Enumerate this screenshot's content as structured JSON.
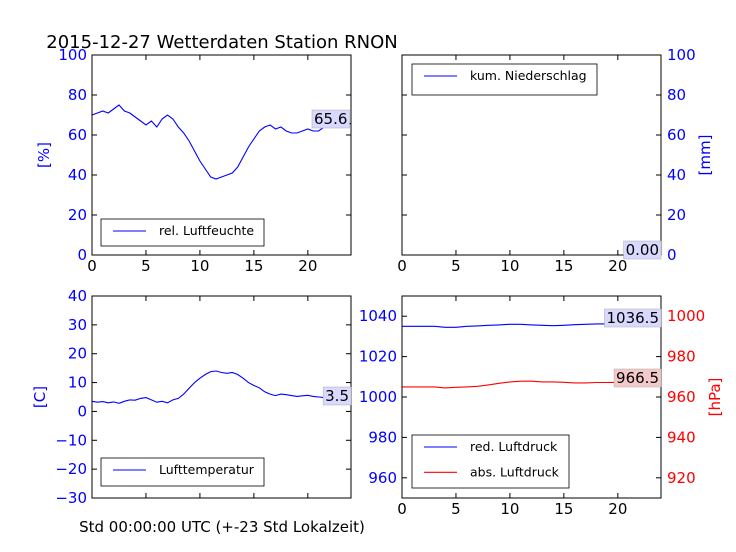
{
  "title": "2015-12-27 Wetterdaten Station RNON",
  "xlabel": "Std 00:00:00 UTC (+-23 Std Lokalzeit)",
  "colors": {
    "blue": "#0000ff",
    "red": "#ff0000",
    "annot_bg": "#d9d9ff",
    "annot_bg_red": "#f4c9c9"
  },
  "chart_data": [
    {
      "id": "humidity",
      "type": "line",
      "xlim": [
        0,
        24
      ],
      "ylim": [
        0,
        100
      ],
      "xticks": [
        "0",
        "5",
        "10",
        "15",
        "20"
      ],
      "yticks": [
        "0",
        "20",
        "40",
        "60",
        "80",
        "100"
      ],
      "ylabel": "[%]",
      "ylabel_color": "#0000ff",
      "ytick_color": "#0000ff",
      "last_value": "65.6",
      "legend": "top-left: bottom-left",
      "series": [
        {
          "name": "rel. Luftfeuchte",
          "color": "#0000ff",
          "x": [
            0,
            0.5,
            1,
            1.5,
            2,
            2.5,
            3,
            3.5,
            4,
            4.5,
            5,
            5.5,
            6,
            6.5,
            7,
            7.5,
            8,
            8.5,
            9,
            9.5,
            10,
            10.5,
            11,
            11.5,
            12,
            12.5,
            13,
            13.5,
            14,
            14.5,
            15,
            15.5,
            16,
            16.5,
            17,
            17.5,
            18,
            18.5,
            19,
            19.5,
            20,
            20.5,
            21,
            21.5,
            22,
            22.5,
            23,
            23.5,
            24
          ],
          "y": [
            70,
            71,
            72,
            71,
            73,
            75,
            72,
            71,
            69,
            67,
            65,
            67,
            64,
            68,
            70,
            68,
            64,
            61,
            57,
            52,
            47,
            43,
            39,
            38,
            39,
            40,
            41,
            44,
            49,
            54,
            58,
            62,
            64,
            65,
            63,
            64,
            62,
            61,
            61,
            62,
            63,
            62,
            62,
            64,
            66,
            65,
            65,
            66,
            65.6
          ]
        }
      ]
    },
    {
      "id": "precip",
      "type": "line",
      "xlim": [
        0,
        24
      ],
      "ylim": [
        0,
        100
      ],
      "xticks": [
        "0",
        "5",
        "10",
        "15",
        "20"
      ],
      "yticks": [
        "0",
        "20",
        "40",
        "60",
        "80",
        "100"
      ],
      "ylabel": "[mm]",
      "ylabel_color": "#0000ff",
      "ytick_color": "#0000ff",
      "last_value": "0.00",
      "series": [
        {
          "name": "kum. Niederschlag",
          "color": "#0000ff",
          "x": [
            0,
            24
          ],
          "y": [
            0,
            0
          ]
        }
      ]
    },
    {
      "id": "temperature",
      "type": "line",
      "xlim": [
        0,
        24
      ],
      "ylim": [
        -30,
        40
      ],
      "xticks": [],
      "yticks": [
        "−30",
        "−20",
        "−10",
        "0",
        "10",
        "20",
        "30",
        "40"
      ],
      "ylabel": "[C]",
      "ylabel_color": "#0000ff",
      "ytick_color": "#0000ff",
      "last_value": "3.5",
      "series": [
        {
          "name": "Lufttemperatur",
          "color": "#0000ff",
          "x": [
            0,
            0.5,
            1,
            1.5,
            2,
            2.5,
            3,
            3.5,
            4,
            4.5,
            5,
            5.5,
            6,
            6.5,
            7,
            7.5,
            8,
            8.5,
            9,
            9.5,
            10,
            10.5,
            11,
            11.5,
            12,
            12.5,
            13,
            13.5,
            14,
            14.5,
            15,
            15.5,
            16,
            16.5,
            17,
            17.5,
            18,
            18.5,
            19,
            19.5,
            20,
            20.5,
            21,
            21.5,
            22,
            22.5,
            23,
            23.5,
            24
          ],
          "y": [
            3.5,
            3.2,
            3.4,
            3.0,
            3.3,
            2.8,
            3.5,
            4.0,
            3.9,
            4.5,
            4.8,
            4.0,
            3.2,
            3.5,
            3.0,
            4.0,
            4.5,
            6.0,
            8.0,
            10.0,
            11.5,
            12.8,
            13.8,
            14.0,
            13.5,
            13.2,
            13.5,
            12.8,
            11.5,
            10.0,
            9.0,
            8.2,
            6.8,
            6.0,
            5.5,
            6.0,
            5.8,
            5.5,
            5.2,
            5.4,
            5.6,
            5.2,
            5.0,
            4.8,
            4.5,
            4.2,
            4.0,
            3.8,
            3.5
          ]
        }
      ]
    },
    {
      "id": "pressure",
      "type": "line",
      "xlim": [
        0,
        24
      ],
      "ylim_left": [
        950,
        1050
      ],
      "ylim_right": [
        910,
        1010
      ],
      "xticks": [
        "0",
        "5",
        "10",
        "15",
        "20"
      ],
      "yticks_left": [
        "960",
        "980",
        "1000",
        "1020",
        "1040"
      ],
      "yticks_right": [
        "920",
        "940",
        "960",
        "980",
        "1000"
      ],
      "ylabel_right": "[hPa]",
      "ylabel_color": "#ff0000",
      "last_value_red": "1036.5",
      "last_value_abs": "966.5",
      "series": [
        {
          "name": "red. Luftdruck",
          "color": "#0000ff",
          "axis": "left",
          "x": [
            0,
            1,
            2,
            3,
            4,
            5,
            6,
            7,
            8,
            9,
            10,
            11,
            12,
            13,
            14,
            15,
            16,
            17,
            18,
            19,
            20,
            21,
            22,
            23,
            24
          ],
          "y": [
            1035,
            1035,
            1035,
            1035,
            1034.5,
            1034.5,
            1035,
            1035.2,
            1035.5,
            1035.7,
            1036,
            1036,
            1035.7,
            1035.5,
            1035.3,
            1035.5,
            1035.8,
            1036,
            1036.2,
            1036.2,
            1036.3,
            1036.4,
            1036.5,
            1036.5,
            1036.5
          ]
        },
        {
          "name": "abs. Luftdruck",
          "color": "#ff0000",
          "axis": "right",
          "x": [
            0,
            1,
            2,
            3,
            4,
            5,
            6,
            7,
            8,
            9,
            10,
            11,
            12,
            13,
            14,
            15,
            16,
            17,
            18,
            19,
            20,
            21,
            22,
            23,
            24
          ],
          "y": [
            965,
            965,
            965,
            965,
            964.5,
            964.8,
            965,
            965.3,
            966,
            966.8,
            967.5,
            967.8,
            967.8,
            967.5,
            967.5,
            967.3,
            967,
            967,
            967.2,
            967.2,
            967.3,
            967,
            967.2,
            967,
            966.5
          ]
        }
      ]
    }
  ]
}
